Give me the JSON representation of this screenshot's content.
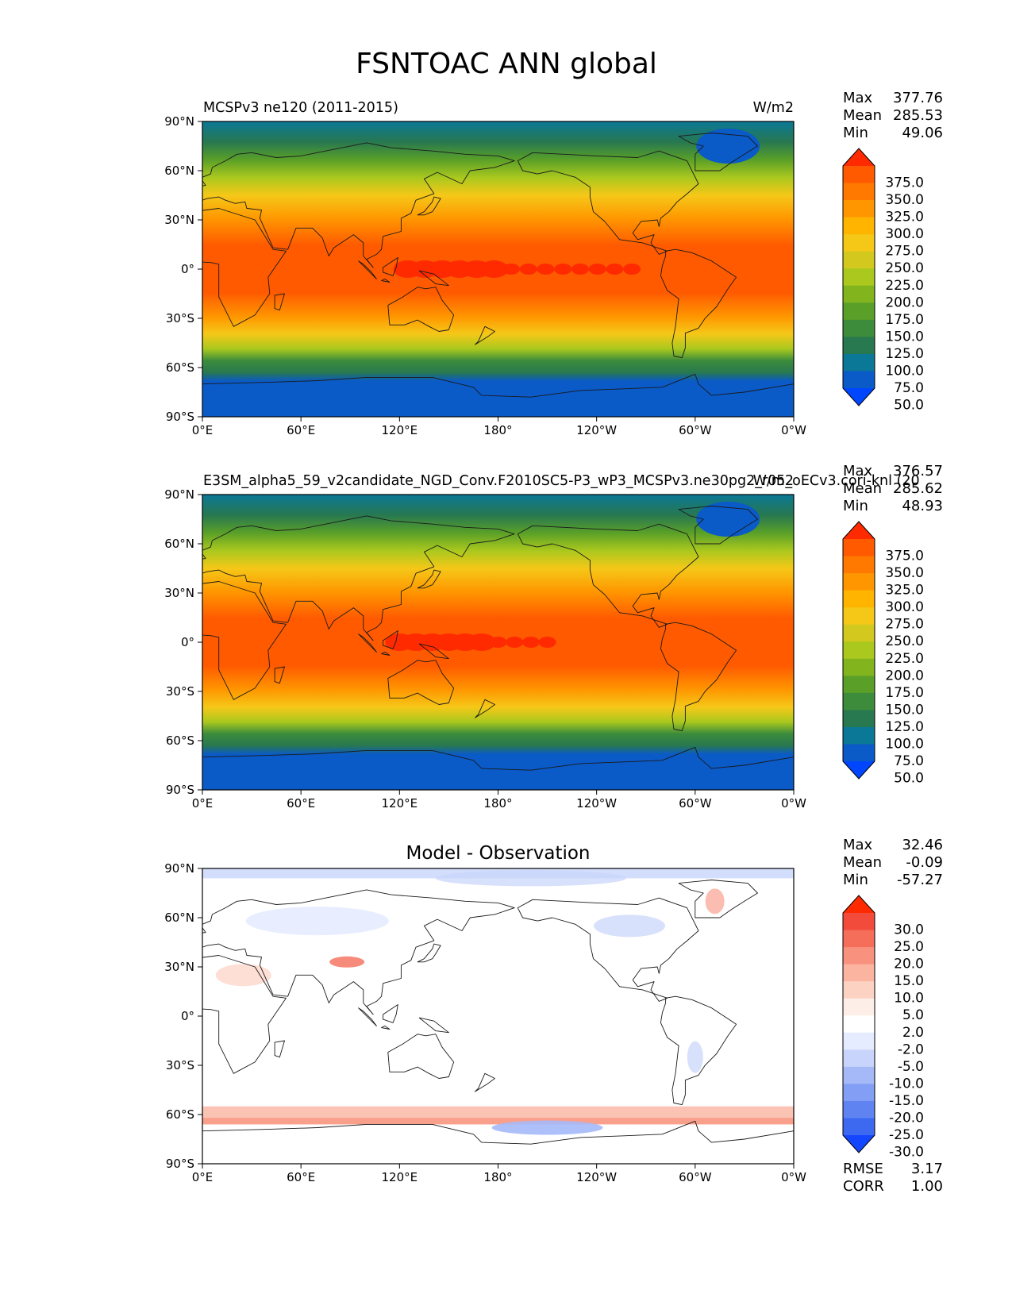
{
  "figure": {
    "title": "FSNTOAC ANN global"
  },
  "chart_data": [
    {
      "type": "heatmap",
      "title_left": "MCSPv3 ne120 (2011-2015)",
      "title_center": "",
      "units": "W/m2",
      "stats": {
        "Max": "377.76",
        "Mean": "285.53",
        "Min": "49.06"
      },
      "x_ticks": [
        "0°E",
        "60°E",
        "120°E",
        "180°",
        "120°W",
        "60°W",
        "0°W"
      ],
      "y_ticks": [
        "90°N",
        "60°N",
        "30°N",
        "0°",
        "30°S",
        "60°S",
        "90°S"
      ],
      "colorbar": {
        "labels": [
          "375.0",
          "350.0",
          "325.0",
          "300.0",
          "275.0",
          "250.0",
          "225.0",
          "200.0",
          "175.0",
          "150.0",
          "125.0",
          "100.0",
          "75.0",
          "50.0"
        ],
        "colors": [
          "#ff2a00",
          "#ff5a00",
          "#ff7800",
          "#ff9600",
          "#ffb400",
          "#f5c818",
          "#d2c81e",
          "#aac81e",
          "#82b41e",
          "#5aa028",
          "#3c8c3c",
          "#287850",
          "#0a7896",
          "#0a5ac8",
          "#0046ff"
        ]
      }
    },
    {
      "type": "heatmap",
      "title_left": "E3SM_alpha5_59_v2candidate_NGD_Conv.F2010SC5-P3_wP3_MCSPv3.ne30pg2_r05_oECv3.cori-knl (20",
      "title_center": "",
      "units": "W/m2",
      "stats": {
        "Max": "376.57",
        "Mean": "285.62",
        "Min": "48.93"
      },
      "x_ticks": [
        "0°E",
        "60°E",
        "120°E",
        "180°",
        "120°W",
        "60°W",
        "0°W"
      ],
      "y_ticks": [
        "90°N",
        "60°N",
        "30°N",
        "0°",
        "30°S",
        "60°S",
        "90°S"
      ],
      "colorbar": {
        "labels": [
          "375.0",
          "350.0",
          "325.0",
          "300.0",
          "275.0",
          "250.0",
          "225.0",
          "200.0",
          "175.0",
          "150.0",
          "125.0",
          "100.0",
          "75.0",
          "50.0"
        ],
        "colors": [
          "#ff2a00",
          "#ff5a00",
          "#ff7800",
          "#ff9600",
          "#ffb400",
          "#f5c818",
          "#d2c81e",
          "#aac81e",
          "#82b41e",
          "#5aa028",
          "#3c8c3c",
          "#287850",
          "#0a7896",
          "#0a5ac8",
          "#0046ff"
        ]
      }
    },
    {
      "type": "heatmap",
      "title_left": "",
      "title_center": "Model - Observation",
      "units": "",
      "stats": {
        "Max": "32.46",
        "Mean": "-0.09",
        "Min": "-57.27"
      },
      "extra_stats": {
        "RMSE": "3.17",
        "CORR": "1.00"
      },
      "x_ticks": [
        "0°E",
        "60°E",
        "120°E",
        "180°",
        "120°W",
        "60°W",
        "0°W"
      ],
      "y_ticks": [
        "90°N",
        "60°N",
        "30°N",
        "0°",
        "30°S",
        "60°S",
        "90°S"
      ],
      "colorbar": {
        "labels": [
          "30.0",
          "25.0",
          "20.0",
          "15.0",
          "10.0",
          "5.0",
          "2.0",
          "-2.0",
          "-5.0",
          "-10.0",
          "-15.0",
          "-20.0",
          "-25.0",
          "-30.0"
        ],
        "colors": [
          "#ff2a00",
          "#f24b3c",
          "#f56e5a",
          "#f8917d",
          "#fab4a0",
          "#fcd2c3",
          "#feeee8",
          "#ffffff",
          "#e6ecff",
          "#c8d4fb",
          "#a5b9f8",
          "#829ff5",
          "#5f84f2",
          "#3c69f0",
          "#1446ff"
        ]
      }
    }
  ]
}
